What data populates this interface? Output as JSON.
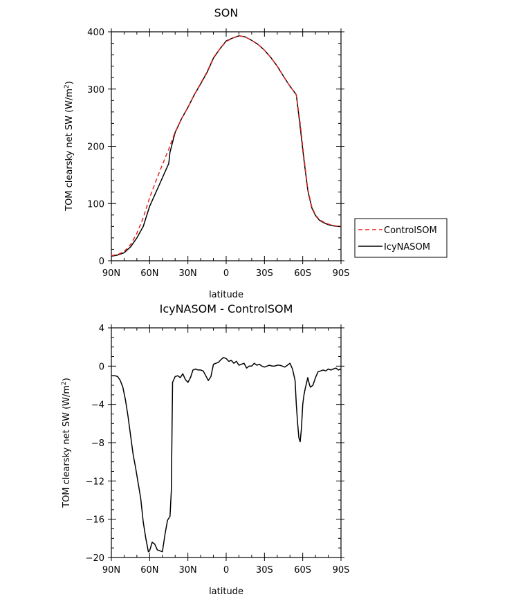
{
  "chart_data": [
    {
      "type": "line",
      "title": "SON",
      "xlabel": "latitude",
      "ylabel_main": "TOM clearsky net SW (W/m",
      "ylabel_sup": "2",
      "ylabel_close": ")",
      "xlim": [
        -90,
        90
      ],
      "ylim": [
        0,
        400
      ],
      "xticks": [
        -90,
        -60,
        -30,
        0,
        30,
        60,
        90
      ],
      "xticklabels": [
        "90N",
        "60N",
        "30N",
        "0",
        "30S",
        "60S",
        "90S"
      ],
      "yticks": [
        0,
        100,
        200,
        300,
        400
      ],
      "yticklabels": [
        "0",
        "100",
        "200",
        "300",
        "400"
      ],
      "legend": {
        "placement": "right",
        "entries": [
          "ControlSOM",
          "IcyNASOM"
        ]
      },
      "series": [
        {
          "name": "ControlSOM",
          "color": "#e8231f",
          "dash": "dashed",
          "x": [
            -90,
            -85,
            -80,
            -75,
            -70,
            -65,
            -60,
            -55,
            -50,
            -45,
            -40,
            -35,
            -30,
            -25,
            -20,
            -15,
            -10,
            -5,
            0,
            5,
            10,
            15,
            20,
            25,
            30,
            35,
            40,
            45,
            50,
            55,
            58,
            61,
            64,
            67,
            70,
            73,
            76,
            80,
            84,
            88,
            90
          ],
          "y": [
            9,
            11,
            16,
            28,
            48,
            75,
            110,
            140,
            168,
            195,
            225,
            248,
            268,
            290,
            310,
            330,
            355,
            370,
            383,
            389,
            393,
            391,
            385,
            378,
            368,
            355,
            340,
            322,
            305,
            290,
            240,
            180,
            125,
            95,
            80,
            72,
            68,
            64,
            62,
            60,
            60
          ]
        },
        {
          "name": "IcyNASOM",
          "color": "#000000",
          "dash": "solid",
          "x": [
            -90,
            -85,
            -80,
            -75,
            -70,
            -65,
            -60,
            -55,
            -50,
            -45,
            -44,
            -40,
            -35,
            -30,
            -25,
            -20,
            -15,
            -10,
            -5,
            0,
            5,
            10,
            15,
            20,
            25,
            30,
            35,
            40,
            45,
            50,
            55,
            58,
            61,
            64,
            67,
            70,
            73,
            76,
            80,
            84,
            88,
            90
          ],
          "y": [
            8,
            10,
            14,
            24,
            40,
            60,
            95,
            120,
            145,
            170,
            190,
            224,
            248,
            268,
            290,
            309,
            329,
            354,
            370,
            384,
            389,
            393,
            391,
            385,
            378,
            368,
            355,
            340,
            322,
            305,
            290,
            234,
            176,
            123,
            93,
            79,
            71,
            67,
            63,
            61,
            60,
            60
          ]
        }
      ]
    },
    {
      "type": "line",
      "title": "IcyNASOM - ControlSOM",
      "xlabel": "latitude",
      "ylabel_main": "TOM clearsky net SW (W/m",
      "ylabel_sup": "2",
      "ylabel_close": ")",
      "xlim": [
        -90,
        90
      ],
      "ylim": [
        -20,
        4
      ],
      "xticks": [
        -90,
        -60,
        -30,
        0,
        30,
        60,
        90
      ],
      "xticklabels": [
        "90N",
        "60N",
        "30N",
        "0",
        "30S",
        "60S",
        "90S"
      ],
      "yticks": [
        4,
        0,
        -4,
        -8,
        -12,
        -16,
        -20
      ],
      "yticklabels": [
        "4",
        "0",
        "−4",
        "−8",
        "−12",
        "−16",
        "−20"
      ],
      "series": [
        {
          "name": "",
          "color": "#000000",
          "dash": "solid",
          "x": [
            -90,
            -87,
            -85,
            -83,
            -81,
            -79,
            -77,
            -75,
            -73,
            -71,
            -69,
            -67,
            -65,
            -63,
            -61,
            -60,
            -58,
            -56,
            -54,
            -52,
            -50,
            -48,
            -46,
            -44,
            -43,
            -42,
            -40,
            -38,
            -36,
            -34,
            -32,
            -30,
            -28,
            -26,
            -24,
            -22,
            -20,
            -18,
            -16,
            -14,
            -12,
            -10,
            -8,
            -6,
            -4,
            -2,
            0,
            2,
            4,
            6,
            8,
            10,
            12,
            14,
            16,
            18,
            20,
            22,
            24,
            26,
            28,
            30,
            32,
            34,
            36,
            38,
            40,
            42,
            44,
            46,
            48,
            50,
            52,
            54,
            55,
            56,
            57,
            58,
            59,
            60,
            61,
            62,
            64,
            65,
            66,
            68,
            70,
            72,
            74,
            76,
            78,
            80,
            82,
            84,
            86,
            88,
            90
          ],
          "y": [
            -1.0,
            -1.0,
            -1.1,
            -1.5,
            -2.2,
            -3.5,
            -5.2,
            -7.2,
            -9.2,
            -10.6,
            -12.2,
            -13.8,
            -16.3,
            -18.0,
            -19.4,
            -19.3,
            -18.4,
            -18.6,
            -19.2,
            -19.3,
            -19.4,
            -17.6,
            -16.1,
            -15.7,
            -13.0,
            -1.7,
            -1.1,
            -1.0,
            -1.2,
            -0.8,
            -1.4,
            -1.7,
            -1.2,
            -0.4,
            -0.3,
            -0.4,
            -0.4,
            -0.5,
            -1.0,
            -1.5,
            -1.1,
            0.2,
            0.3,
            0.4,
            0.7,
            0.9,
            0.8,
            0.5,
            0.6,
            0.3,
            0.5,
            0.1,
            0.2,
            0.3,
            -0.2,
            0.0,
            0.0,
            0.3,
            0.1,
            0.2,
            0.0,
            -0.1,
            0.0,
            0.1,
            0.0,
            0.0,
            0.1,
            0.1,
            0.0,
            -0.1,
            0.1,
            0.3,
            -0.3,
            -1.5,
            -4.0,
            -6.0,
            -7.5,
            -7.9,
            -6.5,
            -4.0,
            -3.0,
            -2.3,
            -1.2,
            -1.8,
            -2.2,
            -2.0,
            -1.2,
            -0.6,
            -0.5,
            -0.4,
            -0.5,
            -0.3,
            -0.4,
            -0.3,
            -0.2,
            -0.4,
            -0.3
          ]
        }
      ]
    }
  ]
}
